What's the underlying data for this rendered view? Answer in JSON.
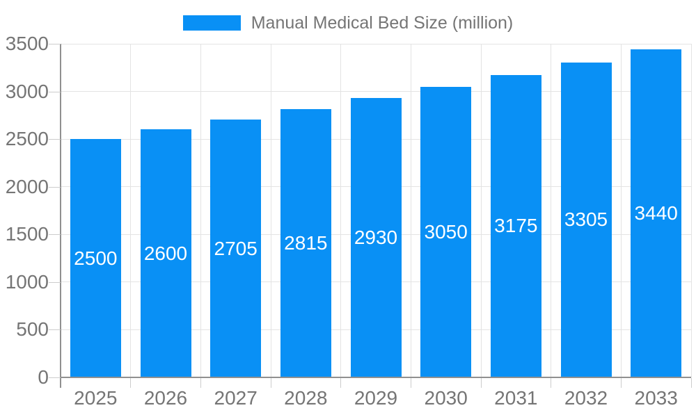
{
  "legend": {
    "label": "Manual Medical Bed Size (million)"
  },
  "chart_data": {
    "type": "bar",
    "title": "Manual Medical Bed Size (million)",
    "categories": [
      "2025",
      "2026",
      "2027",
      "2028",
      "2029",
      "2030",
      "2031",
      "2032",
      "2033"
    ],
    "values": [
      2500,
      2600,
      2705,
      2815,
      2930,
      3050,
      3175,
      3305,
      3440
    ],
    "xlabel": "",
    "ylabel": "",
    "ylim": [
      0,
      3500
    ],
    "yticks": [
      0,
      500,
      1000,
      1500,
      2000,
      2500,
      3000,
      3500
    ],
    "grid": true,
    "legend_position": "top",
    "bar_labels_inside": true,
    "colors": {
      "bar": "#0990f5",
      "bar_label": "#ffffff",
      "axis_line": "#909090",
      "gridline": "#e3e3e3",
      "tick": "#cccccc",
      "text": "#757575"
    }
  }
}
